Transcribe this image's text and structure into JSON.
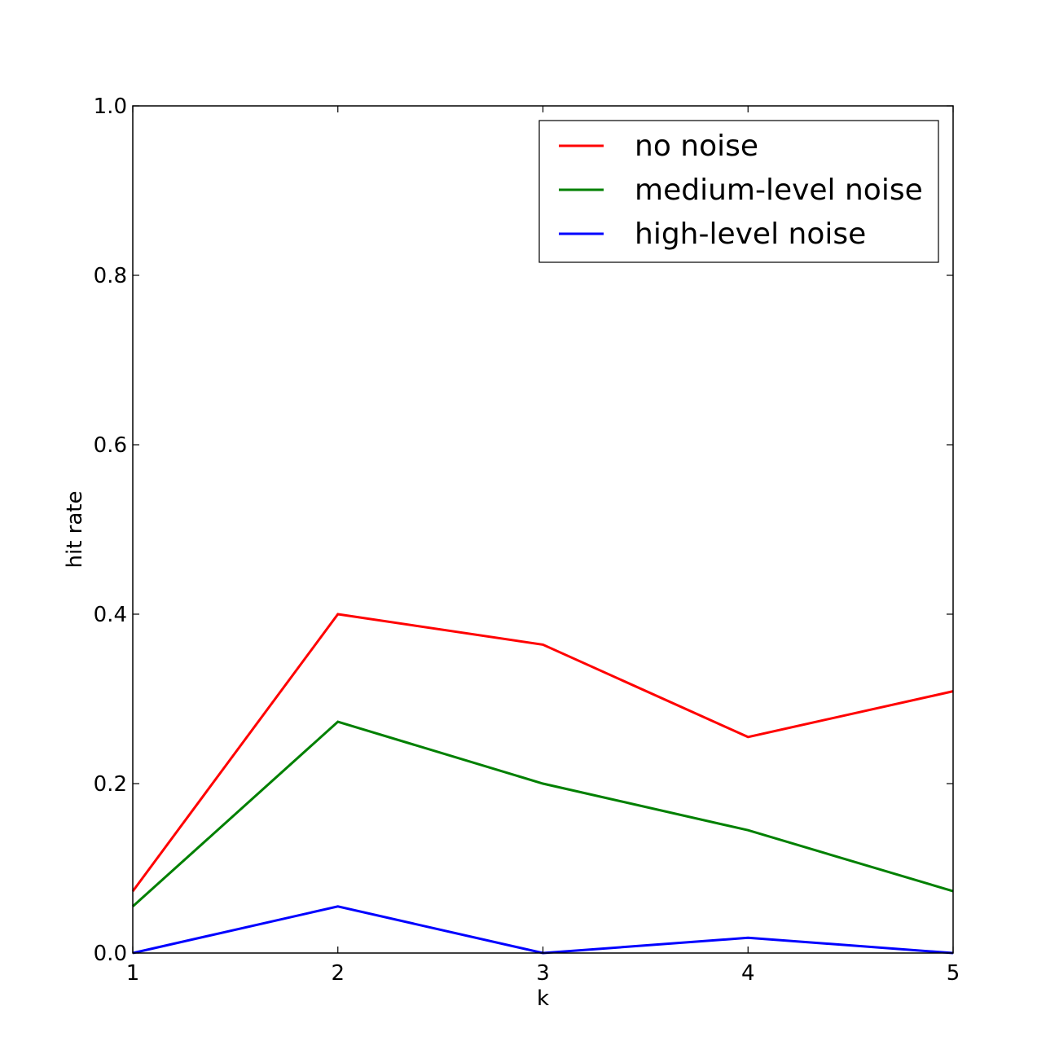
{
  "chart_data": {
    "type": "line",
    "title": "",
    "xlabel": "k",
    "ylabel": "hit rate",
    "x": [
      1,
      2,
      3,
      4,
      5
    ],
    "xlim": [
      1,
      5
    ],
    "ylim": [
      0.0,
      1.0
    ],
    "xticks": [
      "1",
      "2",
      "3",
      "4",
      "5"
    ],
    "yticks": [
      "0.0",
      "0.2",
      "0.4",
      "0.6",
      "0.8",
      "1.0"
    ],
    "grid": false,
    "legend_position": "top-right",
    "series": [
      {
        "name": "no noise",
        "color": "#ff0000",
        "values": [
          0.073,
          0.4,
          0.364,
          0.255,
          0.309
        ]
      },
      {
        "name": "medium-level noise",
        "color": "#008000",
        "values": [
          0.055,
          0.273,
          0.2,
          0.145,
          0.073
        ]
      },
      {
        "name": "high-level noise",
        "color": "#0000ff",
        "values": [
          0.0,
          0.055,
          0.0,
          0.018,
          0.0
        ]
      }
    ]
  }
}
